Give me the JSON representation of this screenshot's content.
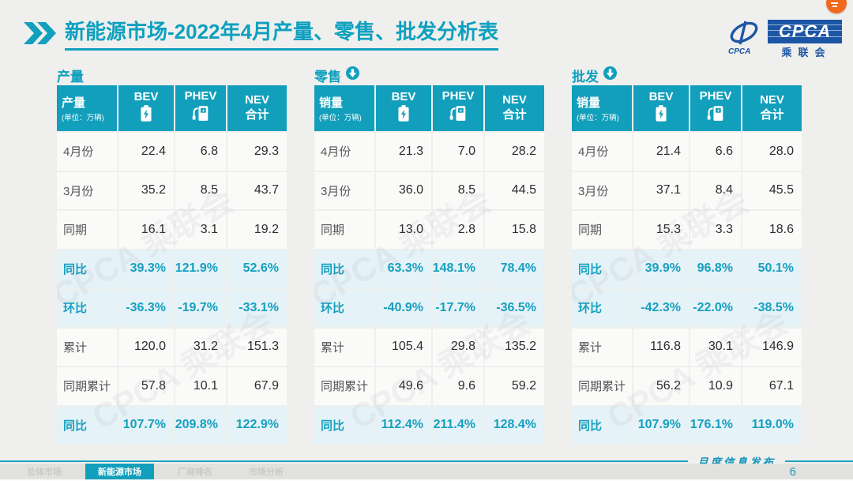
{
  "header": {
    "title_primary": "新能源市场",
    "title_secondary": "-2022年4月产量、零售、批发分析表",
    "logo": {
      "box_text": "CPCA",
      "sub_text": "乘联会",
      "swoosh_text": "CPCA"
    }
  },
  "icons": {
    "title_marker": "double-right-chevron-icon",
    "bev_column": "battery-icon",
    "phev_column": "charging-station-icon",
    "section_trend": "circle-down-arrow-icon",
    "window_corner": "orange-app-icon"
  },
  "colors": {
    "accent_teal": "#129fbc",
    "highlight_row_bg": "#e5f2f7",
    "logo_blue": "#1c55a4",
    "corner_orange": "#f2691d"
  },
  "tables": [
    {
      "section_label": "产量",
      "has_arrow": false,
      "corner_header": "产量",
      "corner_unit": "(单位：万辆)",
      "col_headers": {
        "bev": "BEV",
        "phev": "PHEV",
        "nev_line1": "NEV",
        "nev_line2": "合计"
      },
      "rows": [
        {
          "label": "4月份",
          "highlight": false,
          "values": [
            "22.4",
            "6.8",
            "29.3"
          ]
        },
        {
          "label": "3月份",
          "highlight": false,
          "values": [
            "35.2",
            "8.5",
            "43.7"
          ]
        },
        {
          "label": "同期",
          "highlight": false,
          "values": [
            "16.1",
            "3.1",
            "19.2"
          ]
        },
        {
          "label": "同比",
          "highlight": true,
          "values": [
            "39.3%",
            "121.9%",
            "52.6%"
          ]
        },
        {
          "label": "环比",
          "highlight": true,
          "values": [
            "-36.3%",
            "-19.7%",
            "-33.1%"
          ]
        },
        {
          "label": "累计",
          "highlight": false,
          "values": [
            "120.0",
            "31.2",
            "151.3"
          ]
        },
        {
          "label": "同期累计",
          "highlight": false,
          "values": [
            "57.8",
            "10.1",
            "67.9"
          ]
        },
        {
          "label": "同比",
          "highlight": true,
          "values": [
            "107.7%",
            "209.8%",
            "122.9%"
          ]
        }
      ]
    },
    {
      "section_label": "零售",
      "has_arrow": true,
      "corner_header": "销量",
      "corner_unit": "(单位：万辆)",
      "col_headers": {
        "bev": "BEV",
        "phev": "PHEV",
        "nev_line1": "NEV",
        "nev_line2": "合计"
      },
      "rows": [
        {
          "label": "4月份",
          "highlight": false,
          "values": [
            "21.3",
            "7.0",
            "28.2"
          ]
        },
        {
          "label": "3月份",
          "highlight": false,
          "values": [
            "36.0",
            "8.5",
            "44.5"
          ]
        },
        {
          "label": "同期",
          "highlight": false,
          "values": [
            "13.0",
            "2.8",
            "15.8"
          ]
        },
        {
          "label": "同比",
          "highlight": true,
          "values": [
            "63.3%",
            "148.1%",
            "78.4%"
          ]
        },
        {
          "label": "环比",
          "highlight": true,
          "values": [
            "-40.9%",
            "-17.7%",
            "-36.5%"
          ]
        },
        {
          "label": "累计",
          "highlight": false,
          "values": [
            "105.4",
            "29.8",
            "135.2"
          ]
        },
        {
          "label": "同期累计",
          "highlight": false,
          "values": [
            "49.6",
            "9.6",
            "59.2"
          ]
        },
        {
          "label": "同比",
          "highlight": true,
          "values": [
            "112.4%",
            "211.4%",
            "128.4%"
          ]
        }
      ]
    },
    {
      "section_label": "批发",
      "has_arrow": true,
      "corner_header": "销量",
      "corner_unit": "(单位：万辆)",
      "col_headers": {
        "bev": "BEV",
        "phev": "PHEV",
        "nev_line1": "NEV",
        "nev_line2": "合计"
      },
      "rows": [
        {
          "label": "4月份",
          "highlight": false,
          "values": [
            "21.4",
            "6.6",
            "28.0"
          ]
        },
        {
          "label": "3月份",
          "highlight": false,
          "values": [
            "37.1",
            "8.4",
            "45.5"
          ]
        },
        {
          "label": "同期",
          "highlight": false,
          "values": [
            "15.3",
            "3.3",
            "18.6"
          ]
        },
        {
          "label": "同比",
          "highlight": true,
          "values": [
            "39.9%",
            "96.8%",
            "50.1%"
          ]
        },
        {
          "label": "环比",
          "highlight": true,
          "values": [
            "-42.3%",
            "-22.0%",
            "-38.5%"
          ]
        },
        {
          "label": "累计",
          "highlight": false,
          "values": [
            "116.8",
            "30.1",
            "146.9"
          ]
        },
        {
          "label": "同期累计",
          "highlight": false,
          "values": [
            "56.2",
            "10.9",
            "67.1"
          ]
        },
        {
          "label": "同比",
          "highlight": true,
          "values": [
            "107.9%",
            "176.1%",
            "119.0%"
          ]
        }
      ]
    }
  ],
  "watermark_text": "CPCA 乘联会",
  "footer": {
    "publish_label": "月度信息发布",
    "page_number": "6",
    "tabs": [
      {
        "label": "总体市场",
        "active": false
      },
      {
        "label": "新能源市场",
        "active": true
      },
      {
        "label": "厂商排名",
        "active": false
      },
      {
        "label": "市场分析",
        "active": false
      }
    ]
  }
}
